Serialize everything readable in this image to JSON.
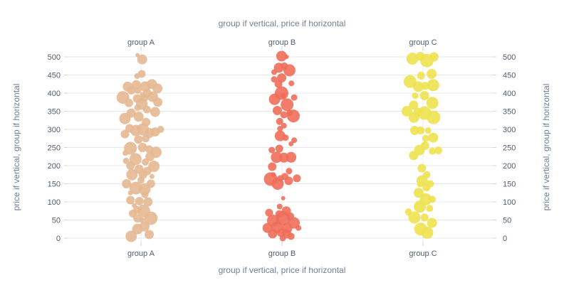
{
  "chart_data": {
    "type": "scatter",
    "subtype": "beeswarm",
    "xaxis_title_top": "group if vertical, price if horizontal",
    "xaxis_title_bottom": "group if vertical, price if horizontal",
    "yaxis_title_left": "price if vertical, group if horizontal",
    "yaxis_title_right": "price if vertical, group if horizontal",
    "categories": [
      "group A",
      "group B",
      "group C"
    ],
    "yticks": [
      0,
      50,
      100,
      150,
      200,
      250,
      300,
      350,
      400,
      450,
      500
    ],
    "ylim": [
      -15,
      515
    ],
    "grid": true,
    "series": [
      {
        "name": "group A",
        "color": "#E6B891",
        "points": [
          {
            "dx": -0.25,
            "y": 5,
            "size": 16
          },
          {
            "dx": 0.21,
            "y": 10,
            "size": 13
          },
          {
            "dx": -0.09,
            "y": 25,
            "size": 15
          },
          {
            "dx": 0.09,
            "y": 32,
            "size": 14
          },
          {
            "dx": 0.25,
            "y": 55,
            "size": 19
          },
          {
            "dx": -0.09,
            "y": 55,
            "size": 12
          },
          {
            "dx": 0.02,
            "y": 50,
            "size": 8
          },
          {
            "dx": -0.21,
            "y": 68,
            "size": 11
          },
          {
            "dx": 0.07,
            "y": 75,
            "size": 18
          },
          {
            "dx": -0.1,
            "y": 78,
            "size": 11
          },
          {
            "dx": 0.18,
            "y": 100,
            "size": 13
          },
          {
            "dx": -0.04,
            "y": 102,
            "size": 12
          },
          {
            "dx": -0.27,
            "y": 105,
            "size": 12
          },
          {
            "dx": -0.17,
            "y": 90,
            "size": 7
          },
          {
            "dx": 0.1,
            "y": 120,
            "size": 10
          },
          {
            "dx": -0.13,
            "y": 138,
            "size": 18
          },
          {
            "dx": 0.09,
            "y": 135,
            "size": 17
          },
          {
            "dx": -0.27,
            "y": 125,
            "size": 7
          },
          {
            "dx": 0.25,
            "y": 150,
            "size": 12
          },
          {
            "dx": -0.37,
            "y": 150,
            "size": 13
          },
          {
            "dx": 0.0,
            "y": 160,
            "size": 10
          },
          {
            "dx": 0.28,
            "y": 170,
            "size": 7
          },
          {
            "dx": -0.23,
            "y": 175,
            "size": 16
          },
          {
            "dx": 0.05,
            "y": 175,
            "size": 12
          },
          {
            "dx": 0.16,
            "y": 185,
            "size": 12
          },
          {
            "dx": -0.05,
            "y": 190,
            "size": 13
          },
          {
            "dx": 0.33,
            "y": 198,
            "size": 16
          },
          {
            "dx": -0.27,
            "y": 200,
            "size": 12
          },
          {
            "dx": -0.38,
            "y": 213,
            "size": 9
          },
          {
            "dx": 0.11,
            "y": 210,
            "size": 10
          },
          {
            "dx": -0.14,
            "y": 218,
            "size": 17
          },
          {
            "dx": 0.23,
            "y": 225,
            "size": 13
          },
          {
            "dx": -0.4,
            "y": 235,
            "size": 8
          },
          {
            "dx": 0.38,
            "y": 237,
            "size": 16
          },
          {
            "dx": 0.21,
            "y": 245,
            "size": 11
          },
          {
            "dx": 0.04,
            "y": 250,
            "size": 13
          },
          {
            "dx": -0.27,
            "y": 248,
            "size": 18
          },
          {
            "dx": 0.12,
            "y": 275,
            "size": 11
          },
          {
            "dx": -0.07,
            "y": 272,
            "size": 12
          },
          {
            "dx": -0.41,
            "y": 287,
            "size": 12
          },
          {
            "dx": 0.22,
            "y": 290,
            "size": 14
          },
          {
            "dx": 0.36,
            "y": 293,
            "size": 13
          },
          {
            "dx": 0.05,
            "y": 300,
            "size": 17
          },
          {
            "dx": -0.13,
            "y": 297,
            "size": 16
          },
          {
            "dx": 0.5,
            "y": 300,
            "size": 10
          },
          {
            "dx": -0.29,
            "y": 303,
            "size": 12
          },
          {
            "dx": 0.13,
            "y": 320,
            "size": 12
          },
          {
            "dx": -0.41,
            "y": 330,
            "size": 16
          },
          {
            "dx": -0.06,
            "y": 335,
            "size": 14
          },
          {
            "dx": -0.25,
            "y": 345,
            "size": 13
          },
          {
            "dx": 0.36,
            "y": 348,
            "size": 14
          },
          {
            "dx": 0.15,
            "y": 355,
            "size": 11
          },
          {
            "dx": -0.09,
            "y": 360,
            "size": 9
          },
          {
            "dx": 0.02,
            "y": 370,
            "size": 16
          },
          {
            "dx": -0.31,
            "y": 373,
            "size": 12
          },
          {
            "dx": 0.43,
            "y": 375,
            "size": 13
          },
          {
            "dx": -0.1,
            "y": 385,
            "size": 12
          },
          {
            "dx": -0.46,
            "y": 388,
            "size": 18
          },
          {
            "dx": 0.09,
            "y": 387,
            "size": 11
          },
          {
            "dx": 0.3,
            "y": 390,
            "size": 15
          },
          {
            "dx": 0.04,
            "y": 395,
            "size": 8
          },
          {
            "dx": -0.25,
            "y": 408,
            "size": 12
          },
          {
            "dx": 0.16,
            "y": 400,
            "size": 12
          },
          {
            "dx": -0.08,
            "y": 408,
            "size": 10
          },
          {
            "dx": 0.42,
            "y": 413,
            "size": 14
          },
          {
            "dx": -0.34,
            "y": 418,
            "size": 14
          },
          {
            "dx": 0.11,
            "y": 418,
            "size": 15
          },
          {
            "dx": 0.28,
            "y": 425,
            "size": 14
          },
          {
            "dx": -0.12,
            "y": 423,
            "size": 13
          },
          {
            "dx": -0.1,
            "y": 447,
            "size": 8
          },
          {
            "dx": 0.02,
            "y": 453,
            "size": 11
          },
          {
            "dx": -0.09,
            "y": 505,
            "size": 6
          },
          {
            "dx": 0.03,
            "y": 493,
            "size": 14
          }
        ]
      },
      {
        "name": "group B",
        "color": "#EF6E5A",
        "points": [
          {
            "dx": 0.02,
            "y": 0,
            "size": 9
          },
          {
            "dx": 0.23,
            "y": 5,
            "size": 10
          },
          {
            "dx": -0.24,
            "y": 12,
            "size": 13
          },
          {
            "dx": 0.12,
            "y": 12,
            "size": 13
          },
          {
            "dx": -0.02,
            "y": 15,
            "size": 12
          },
          {
            "dx": -0.37,
            "y": 28,
            "size": 14
          },
          {
            "dx": 0.42,
            "y": 28,
            "size": 8
          },
          {
            "dx": 0.13,
            "y": 28,
            "size": 15
          },
          {
            "dx": -0.13,
            "y": 30,
            "size": 16
          },
          {
            "dx": 0.31,
            "y": 42,
            "size": 16
          },
          {
            "dx": -0.23,
            "y": 48,
            "size": 17
          },
          {
            "dx": 0.03,
            "y": 55,
            "size": 20
          },
          {
            "dx": 0.21,
            "y": 60,
            "size": 11
          },
          {
            "dx": -0.07,
            "y": 66,
            "size": 11
          },
          {
            "dx": -0.33,
            "y": 70,
            "size": 11
          },
          {
            "dx": 0.11,
            "y": 75,
            "size": 13
          },
          {
            "dx": -0.06,
            "y": 87,
            "size": 8
          },
          {
            "dx": 0.03,
            "y": 110,
            "size": 6
          },
          {
            "dx": -0.11,
            "y": 150,
            "size": 17
          },
          {
            "dx": -0.29,
            "y": 163,
            "size": 19
          },
          {
            "dx": 0.17,
            "y": 158,
            "size": 12
          },
          {
            "dx": 0.38,
            "y": 165,
            "size": 11
          },
          {
            "dx": -0.04,
            "y": 165,
            "size": 9
          },
          {
            "dx": -0.22,
            "y": 175,
            "size": 7
          },
          {
            "dx": 0.07,
            "y": 170,
            "size": 10
          },
          {
            "dx": 0.18,
            "y": 185,
            "size": 9
          },
          {
            "dx": -0.25,
            "y": 197,
            "size": 12
          },
          {
            "dx": -0.14,
            "y": 223,
            "size": 16
          },
          {
            "dx": 0.05,
            "y": 222,
            "size": 14
          },
          {
            "dx": 0.23,
            "y": 223,
            "size": 15
          },
          {
            "dx": -0.26,
            "y": 243,
            "size": 9
          },
          {
            "dx": -0.07,
            "y": 247,
            "size": 11
          },
          {
            "dx": 0.23,
            "y": 260,
            "size": 7
          },
          {
            "dx": 0.31,
            "y": 270,
            "size": 8
          },
          {
            "dx": 0.09,
            "y": 277,
            "size": 9
          },
          {
            "dx": -0.05,
            "y": 282,
            "size": 15
          },
          {
            "dx": -0.05,
            "y": 302,
            "size": 8
          },
          {
            "dx": 0.05,
            "y": 310,
            "size": 8
          },
          {
            "dx": -0.06,
            "y": 322,
            "size": 10
          },
          {
            "dx": 0.29,
            "y": 337,
            "size": 18
          },
          {
            "dx": 0.05,
            "y": 340,
            "size": 10
          },
          {
            "dx": -0.12,
            "y": 352,
            "size": 13
          },
          {
            "dx": 0.19,
            "y": 345,
            "size": 9
          },
          {
            "dx": 0.13,
            "y": 368,
            "size": 18
          },
          {
            "dx": -0.19,
            "y": 383,
            "size": 16
          },
          {
            "dx": 0.03,
            "y": 393,
            "size": 8
          },
          {
            "dx": 0.31,
            "y": 388,
            "size": 9
          },
          {
            "dx": -0.01,
            "y": 400,
            "size": 19
          },
          {
            "dx": -0.09,
            "y": 425,
            "size": 11
          },
          {
            "dx": -0.2,
            "y": 438,
            "size": 9
          },
          {
            "dx": 0.24,
            "y": 427,
            "size": 8
          },
          {
            "dx": -0.01,
            "y": 442,
            "size": 13
          },
          {
            "dx": 0.19,
            "y": 463,
            "size": 17
          },
          {
            "dx": -0.08,
            "y": 470,
            "size": 14
          },
          {
            "dx": -0.2,
            "y": 458,
            "size": 8
          },
          {
            "dx": 0.06,
            "y": 475,
            "size": 10
          },
          {
            "dx": -0.01,
            "y": 502,
            "size": 15
          },
          {
            "dx": 0.12,
            "y": 500,
            "size": 6
          }
        ]
      },
      {
        "name": "group C",
        "color": "#EEE24F",
        "points": [
          {
            "dx": -0.06,
            "y": 25,
            "size": 18
          },
          {
            "dx": 0.11,
            "y": 15,
            "size": 17
          },
          {
            "dx": -0.22,
            "y": 57,
            "size": 17
          },
          {
            "dx": 0.23,
            "y": 42,
            "size": 14
          },
          {
            "dx": -0.37,
            "y": 72,
            "size": 10
          },
          {
            "dx": 0.04,
            "y": 57,
            "size": 11
          },
          {
            "dx": 0.17,
            "y": 82,
            "size": 10
          },
          {
            "dx": -0.08,
            "y": 87,
            "size": 17
          },
          {
            "dx": 0.07,
            "y": 107,
            "size": 17
          },
          {
            "dx": 0.24,
            "y": 107,
            "size": 10
          },
          {
            "dx": -0.11,
            "y": 125,
            "size": 14
          },
          {
            "dx": 0.09,
            "y": 140,
            "size": 11
          },
          {
            "dx": 0.19,
            "y": 150,
            "size": 10
          },
          {
            "dx": -0.08,
            "y": 148,
            "size": 8
          },
          {
            "dx": -0.02,
            "y": 158,
            "size": 16
          },
          {
            "dx": 0.1,
            "y": 175,
            "size": 10
          },
          {
            "dx": -0.03,
            "y": 193,
            "size": 12
          },
          {
            "dx": -0.24,
            "y": 228,
            "size": 13
          },
          {
            "dx": 0.24,
            "y": 240,
            "size": 10
          },
          {
            "dx": 0.39,
            "y": 242,
            "size": 11
          },
          {
            "dx": -0.09,
            "y": 243,
            "size": 15
          },
          {
            "dx": 0.05,
            "y": 255,
            "size": 12
          },
          {
            "dx": 0.26,
            "y": 277,
            "size": 14
          },
          {
            "dx": 0.07,
            "y": 275,
            "size": 10
          },
          {
            "dx": 0.13,
            "y": 297,
            "size": 9
          },
          {
            "dx": -0.06,
            "y": 297,
            "size": 11
          },
          {
            "dx": -0.21,
            "y": 297,
            "size": 13
          },
          {
            "dx": -0.23,
            "y": 333,
            "size": 15
          },
          {
            "dx": 0.04,
            "y": 345,
            "size": 19
          },
          {
            "dx": 0.27,
            "y": 333,
            "size": 19
          },
          {
            "dx": -0.41,
            "y": 350,
            "size": 15
          },
          {
            "dx": -0.13,
            "y": 348,
            "size": 12
          },
          {
            "dx": 0.24,
            "y": 373,
            "size": 17
          },
          {
            "dx": -0.24,
            "y": 367,
            "size": 13
          },
          {
            "dx": 0.04,
            "y": 393,
            "size": 13
          },
          {
            "dx": -0.2,
            "y": 393,
            "size": 9
          },
          {
            "dx": 0.26,
            "y": 422,
            "size": 17
          },
          {
            "dx": -0.33,
            "y": 432,
            "size": 18
          },
          {
            "dx": -0.12,
            "y": 418,
            "size": 15
          },
          {
            "dx": 0.06,
            "y": 420,
            "size": 11
          },
          {
            "dx": 0.22,
            "y": 453,
            "size": 14
          },
          {
            "dx": -0.05,
            "y": 448,
            "size": 11
          },
          {
            "dx": 0.1,
            "y": 490,
            "size": 19
          },
          {
            "dx": 0.28,
            "y": 500,
            "size": 13
          },
          {
            "dx": -0.27,
            "y": 495,
            "size": 17
          },
          {
            "dx": -0.07,
            "y": 502,
            "size": 12
          }
        ]
      }
    ]
  }
}
